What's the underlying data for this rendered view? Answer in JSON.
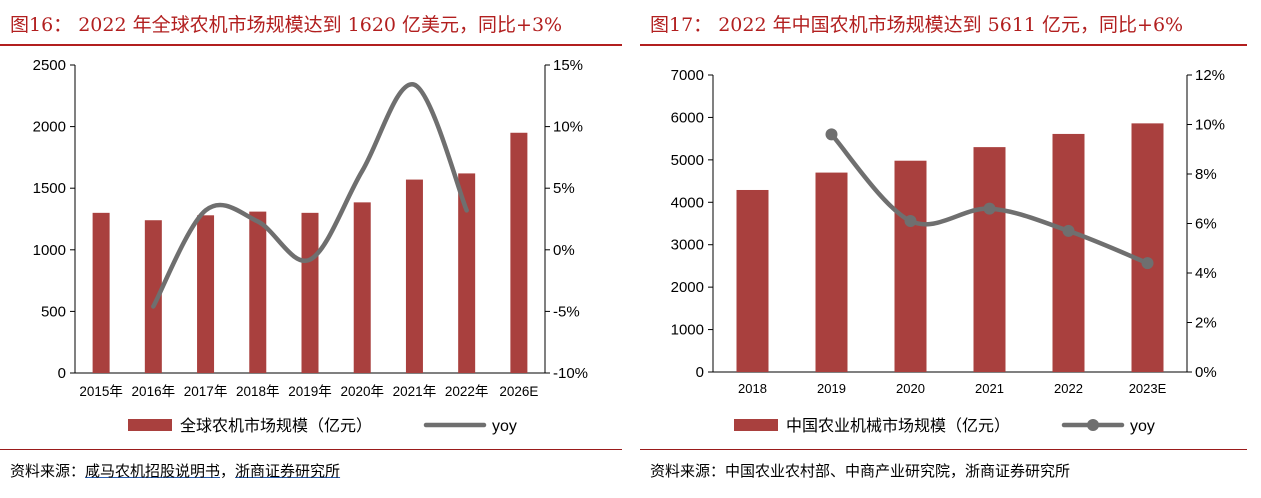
{
  "charts": [
    {
      "title": "图16： 2022 年全球农机市场规模达到 1620 亿美元，同比+3%",
      "source_label": "资料来源：",
      "source_parts": [
        "咸马农机招股说明书",
        "，",
        "浙商证券研究所"
      ],
      "bar_color": "#a9403e",
      "line_color": "#6f6f6f"
    },
    {
      "title": "图17： 2022 年中国农机市场规模达到 5611 亿元，同比+6%",
      "source_label": "资料来源：",
      "source_text": "中国农业农村部、中商产业研究院，浙商证券研究所",
      "bar_color": "#a9403e",
      "line_color": "#6f6f6f"
    }
  ],
  "chart_data": [
    {
      "type": "bar",
      "categories": [
        "2015年",
        "2016年",
        "2017年",
        "2018年",
        "2019年",
        "2020年",
        "2021年",
        "2022年",
        "2026E"
      ],
      "series": [
        {
          "name": "全球农机市场规模（亿元）",
          "type": "bar",
          "axis": "left",
          "values": [
            1300,
            1240,
            1280,
            1310,
            1300,
            1385,
            1570,
            1620,
            1950
          ]
        },
        {
          "name": "yoy",
          "type": "line",
          "axis": "right",
          "smooth": true,
          "values": [
            null,
            -4.6,
            3.2,
            2.3,
            -0.8,
            6.4,
            13.4,
            3.2,
            null
          ]
        }
      ],
      "ylim_left": [
        0,
        2500
      ],
      "yticks_left": [
        "0",
        "500",
        "1000",
        "1500",
        "2000",
        "2500"
      ],
      "ylim_right": [
        -10,
        15
      ],
      "yticks_right": [
        "-10%",
        "-5%",
        "0%",
        "5%",
        "10%",
        "15%"
      ],
      "legend_position": "bottom",
      "grid": false
    },
    {
      "type": "bar",
      "categories": [
        "2018",
        "2019",
        "2020",
        "2021",
        "2022",
        "2023E"
      ],
      "series": [
        {
          "name": "中国农业机械市场规模（亿元）",
          "type": "bar",
          "axis": "left",
          "values": [
            4290,
            4700,
            4980,
            5300,
            5611,
            5860
          ]
        },
        {
          "name": "yoy",
          "type": "line",
          "axis": "right",
          "smooth": true,
          "markers": true,
          "values": [
            null,
            9.6,
            6.1,
            6.6,
            5.7,
            4.4
          ]
        }
      ],
      "ylim_left": [
        0,
        7000
      ],
      "yticks_left": [
        "0",
        "1000",
        "2000",
        "3000",
        "4000",
        "5000",
        "6000",
        "7000"
      ],
      "ylim_right": [
        0,
        12
      ],
      "yticks_right": [
        "0%",
        "2%",
        "4%",
        "6%",
        "8%",
        "10%",
        "12%"
      ],
      "legend_position": "bottom",
      "grid": false
    }
  ]
}
